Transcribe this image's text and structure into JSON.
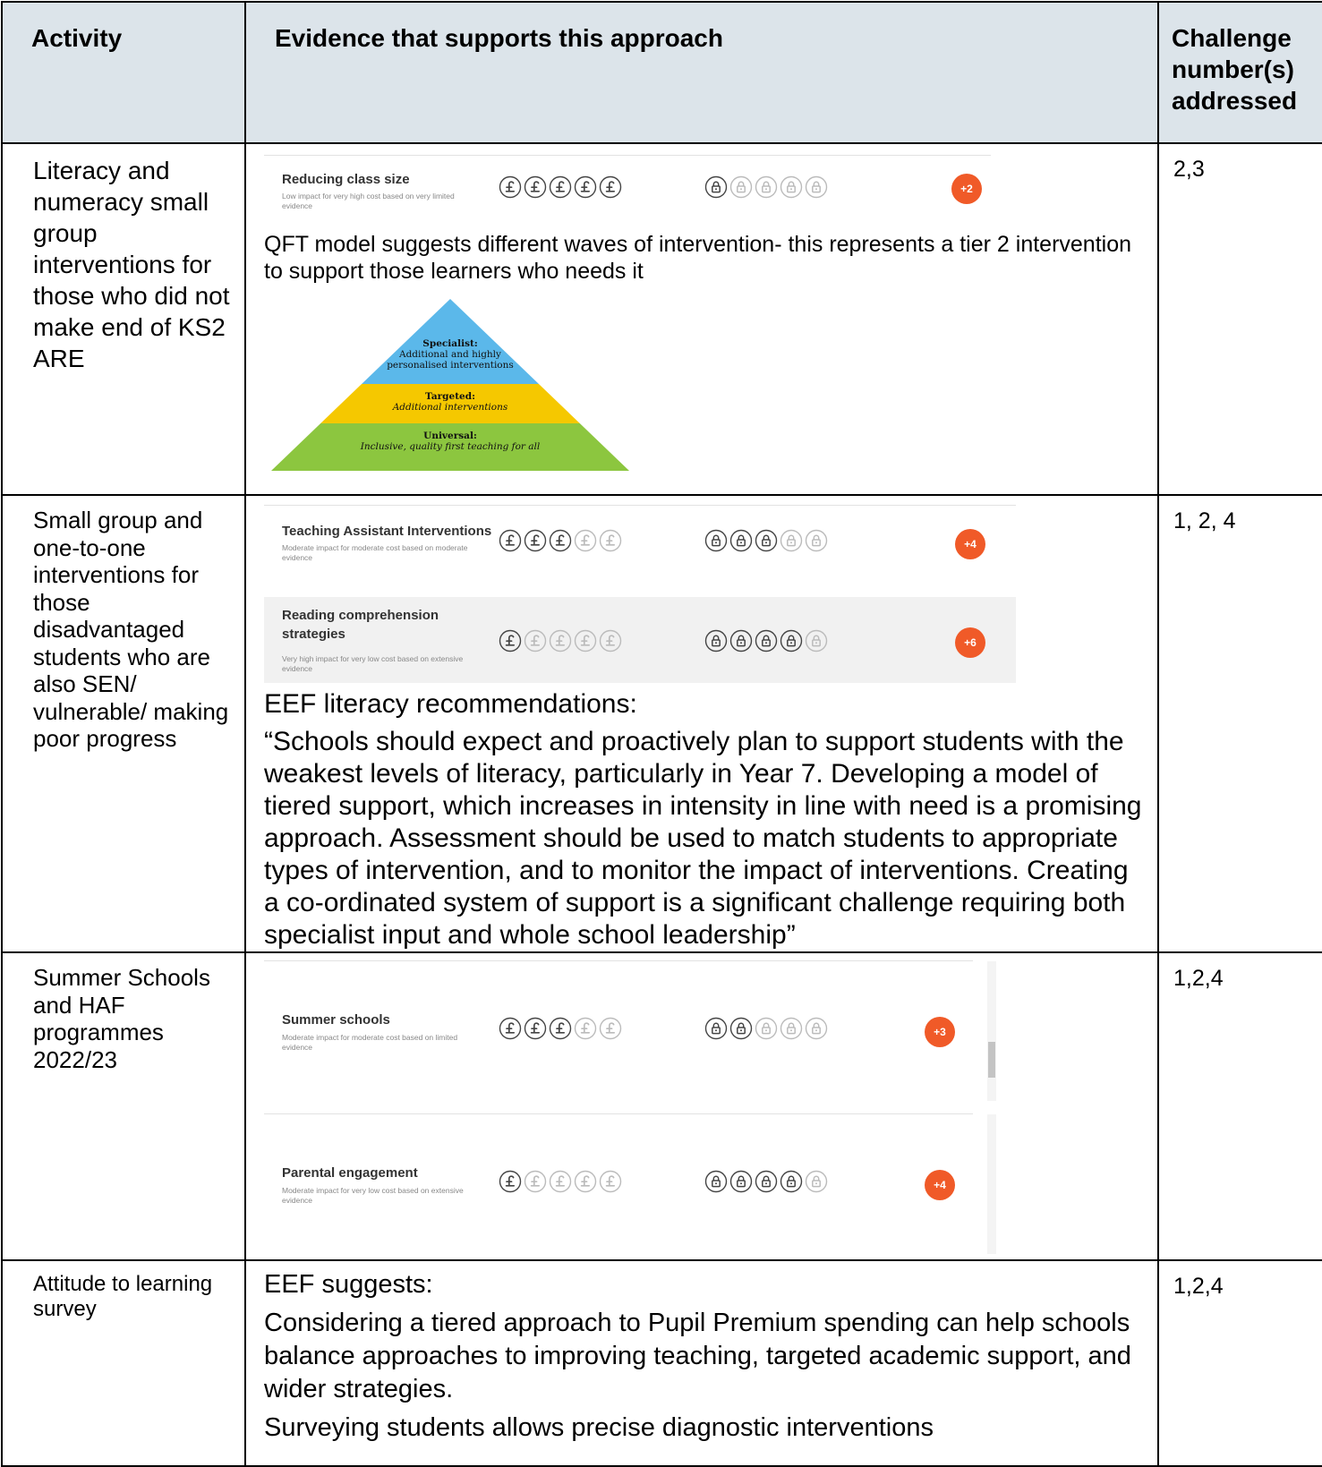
{
  "table": {
    "headers": [
      "Activity",
      "Evidence that supports this approach",
      "Challenge number(s) addressed"
    ],
    "rows": [
      {
        "activity": "Literacy and numeracy small group interventions for those who did not make end of KS2 ARE",
        "evidence": [
          {
            "kind": "toolkit",
            "title": "Reducing class size",
            "description": "Low impact for very high cost based on very limited evidence",
            "cost": 5,
            "security": 1,
            "impact": "+2"
          },
          {
            "kind": "paragraph",
            "text": "QFT model suggests different waves of intervention- this represents a tier 2 intervention to support those learners who needs it"
          },
          {
            "kind": "pyramid",
            "layers": [
              {
                "name": "Specialist:",
                "text": "Additional and highly personalised interventions",
                "color": "#5bb8ea"
              },
              {
                "name": "Targeted:",
                "text": "Additional interventions",
                "color": "#f5c800"
              },
              {
                "name": "Universal:",
                "text": "Inclusive, quality first teaching for all",
                "color": "#8cc63f"
              }
            ]
          }
        ],
        "challenges": "2,3"
      },
      {
        "activity": "Small group and one-to-one interventions for those disadvantaged students who are also SEN/ vulnerable/ making poor progress",
        "evidence": [
          {
            "kind": "toolkit",
            "title": "Teaching Assistant Interventions",
            "description": "Moderate impact for moderate cost based on moderate evidence",
            "cost": 3,
            "security": 3,
            "impact": "+4"
          },
          {
            "kind": "toolkit",
            "title": "Reading comprehension strategies",
            "description": "Very high impact for very low cost based on extensive evidence",
            "cost": 1,
            "security": 4,
            "impact": "+6"
          },
          {
            "kind": "paragraph",
            "text": "EEF literacy recommendations:"
          },
          {
            "kind": "paragraph",
            "text": "“Schools should expect and proactively plan to support students with the weakest levels of literacy, particularly in Year 7. Developing a model of tiered support, which increases in intensity in line with need is a promising approach. Assessment should be used to match students to appropriate types of intervention, and to monitor the impact of interventions. Creating a co-ordinated system of support is a significant challenge requiring both specialist input and whole school leadership”"
          }
        ],
        "challenges": "1, 2, 4"
      },
      {
        "activity": "Summer Schools and HAF programmes 2022/23",
        "evidence": [
          {
            "kind": "toolkit",
            "title": "Summer schools",
            "description": "Moderate impact for moderate cost based on limited evidence",
            "cost": 3,
            "security": 2,
            "impact": "+3"
          },
          {
            "kind": "toolkit",
            "title": "Parental engagement",
            "description": "Moderate impact for very low cost based on extensive evidence",
            "cost": 1,
            "security": 4,
            "impact": "+4"
          }
        ],
        "challenges": "1,2,4"
      },
      {
        "activity": "Attitude to learning survey",
        "evidence": [
          {
            "kind": "paragraph",
            "text": "EEF suggests:"
          },
          {
            "kind": "paragraph",
            "text": "Considering a tiered approach to Pupil Premium spending can help schools balance approaches to improving teaching, targeted academic support, and wider strategies."
          },
          {
            "kind": "paragraph",
            "text": "Surveying students allows precise diagnostic interventions"
          }
        ],
        "challenges": "1,2,4"
      }
    ]
  }
}
